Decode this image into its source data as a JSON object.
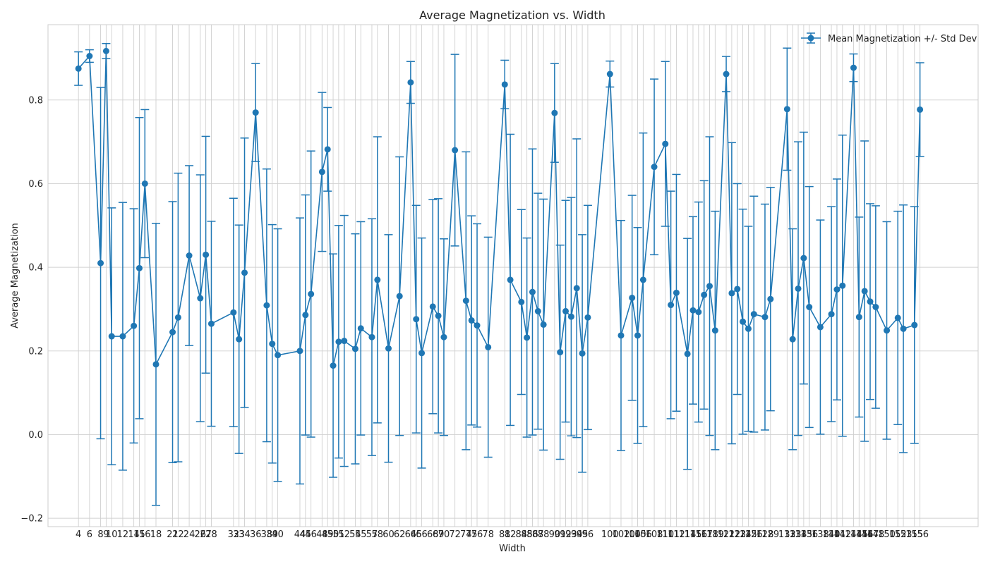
{
  "chart_data": {
    "type": "line",
    "title": "Average Magnetization vs. Width",
    "xlabel": "Width",
    "ylabel": "Average Magnetization",
    "legend": {
      "label": "Mean Magnetization +/- Std Dev",
      "placement": "top-right"
    },
    "grid": true,
    "color": "#1f77b4",
    "xlim": [
      0,
      160
    ],
    "ylim": [
      -0.22,
      0.98
    ],
    "yticks": [
      -0.2,
      0.0,
      0.2,
      0.4,
      0.6,
      0.8
    ],
    "ytick_labels": [
      "−0.2",
      "0.0",
      "0.2",
      "0.4",
      "0.6",
      "0.8"
    ],
    "points": [
      {
        "x": 4,
        "y": 0.875,
        "err": 0.04
      },
      {
        "x": 6,
        "y": 0.905,
        "err": 0.015
      },
      {
        "x": 8,
        "y": 0.41,
        "err": 0.42
      },
      {
        "x": 9,
        "y": 0.917,
        "err": 0.018
      },
      {
        "x": 10,
        "y": 0.235,
        "err": 0.307
      },
      {
        "x": 12,
        "y": 0.235,
        "err": 0.32
      },
      {
        "x": 14,
        "y": 0.26,
        "err": 0.28
      },
      {
        "x": 15,
        "y": 0.398,
        "err": 0.36
      },
      {
        "x": 16,
        "y": 0.6,
        "err": 0.177
      },
      {
        "x": 18,
        "y": 0.168,
        "err": 0.337
      },
      {
        "x": 21,
        "y": 0.245,
        "err": 0.312
      },
      {
        "x": 22,
        "y": 0.28,
        "err": 0.345
      },
      {
        "x": 24,
        "y": 0.428,
        "err": 0.215
      },
      {
        "x": 26,
        "y": 0.326,
        "err": 0.295
      },
      {
        "x": 27,
        "y": 0.43,
        "err": 0.283
      },
      {
        "x": 28,
        "y": 0.265,
        "err": 0.245
      },
      {
        "x": 32,
        "y": 0.292,
        "err": 0.273
      },
      {
        "x": 33,
        "y": 0.228,
        "err": 0.273
      },
      {
        "x": 34,
        "y": 0.387,
        "err": 0.322
      },
      {
        "x": 36,
        "y": 0.77,
        "err": 0.117
      },
      {
        "x": 38,
        "y": 0.309,
        "err": 0.326
      },
      {
        "x": 39,
        "y": 0.217,
        "err": 0.285
      },
      {
        "x": 40,
        "y": 0.19,
        "err": 0.302
      },
      {
        "x": 44,
        "y": 0.2,
        "err": 0.318
      },
      {
        "x": 45,
        "y": 0.286,
        "err": 0.287
      },
      {
        "x": 46,
        "y": 0.336,
        "err": 0.342
      },
      {
        "x": 48,
        "y": 0.628,
        "err": 0.19
      },
      {
        "x": 49,
        "y": 0.682,
        "err": 0.1
      },
      {
        "x": 50,
        "y": 0.165,
        "err": 0.267
      },
      {
        "x": 51,
        "y": 0.222,
        "err": 0.278
      },
      {
        "x": 52,
        "y": 0.224,
        "err": 0.3
      },
      {
        "x": 54,
        "y": 0.205,
        "err": 0.275
      },
      {
        "x": 55,
        "y": 0.254,
        "err": 0.255
      },
      {
        "x": 57,
        "y": 0.233,
        "err": 0.283
      },
      {
        "x": 58,
        "y": 0.37,
        "err": 0.342
      },
      {
        "x": 60,
        "y": 0.206,
        "err": 0.272
      },
      {
        "x": 62,
        "y": 0.331,
        "err": 0.333
      },
      {
        "x": 64,
        "y": 0.842,
        "err": 0.05
      },
      {
        "x": 65,
        "y": 0.276,
        "err": 0.272
      },
      {
        "x": 66,
        "y": 0.195,
        "err": 0.275
      },
      {
        "x": 68,
        "y": 0.306,
        "err": 0.256
      },
      {
        "x": 69,
        "y": 0.284,
        "err": 0.28
      },
      {
        "x": 70,
        "y": 0.233,
        "err": 0.235
      },
      {
        "x": 72,
        "y": 0.68,
        "err": 0.229
      },
      {
        "x": 74,
        "y": 0.32,
        "err": 0.356
      },
      {
        "x": 75,
        "y": 0.273,
        "err": 0.25
      },
      {
        "x": 76,
        "y": 0.261,
        "err": 0.243
      },
      {
        "x": 78,
        "y": 0.209,
        "err": 0.263
      },
      {
        "x": 81,
        "y": 0.837,
        "err": 0.058
      },
      {
        "x": 82,
        "y": 0.37,
        "err": 0.348
      },
      {
        "x": 84,
        "y": 0.317,
        "err": 0.221
      },
      {
        "x": 85,
        "y": 0.232,
        "err": 0.238
      },
      {
        "x": 86,
        "y": 0.341,
        "err": 0.342
      },
      {
        "x": 87,
        "y": 0.295,
        "err": 0.282
      },
      {
        "x": 88,
        "y": 0.263,
        "err": 0.3
      },
      {
        "x": 90,
        "y": 0.769,
        "err": 0.118
      },
      {
        "x": 91,
        "y": 0.197,
        "err": 0.256
      },
      {
        "x": 92,
        "y": 0.295,
        "err": 0.265
      },
      {
        "x": 93,
        "y": 0.282,
        "err": 0.285
      },
      {
        "x": 94,
        "y": 0.35,
        "err": 0.357
      },
      {
        "x": 95,
        "y": 0.194,
        "err": 0.284
      },
      {
        "x": 96,
        "y": 0.28,
        "err": 0.268
      },
      {
        "x": 100,
        "y": 0.862,
        "err": 0.031
      },
      {
        "x": 102,
        "y": 0.237,
        "err": 0.275
      },
      {
        "x": 104,
        "y": 0.327,
        "err": 0.245
      },
      {
        "x": 105,
        "y": 0.237,
        "err": 0.258
      },
      {
        "x": 106,
        "y": 0.37,
        "err": 0.351
      },
      {
        "x": 108,
        "y": 0.64,
        "err": 0.21
      },
      {
        "x": 110,
        "y": 0.695,
        "err": 0.197
      },
      {
        "x": 111,
        "y": 0.31,
        "err": 0.272
      },
      {
        "x": 112,
        "y": 0.339,
        "err": 0.283
      },
      {
        "x": 114,
        "y": 0.193,
        "err": 0.276
      },
      {
        "x": 115,
        "y": 0.297,
        "err": 0.224
      },
      {
        "x": 116,
        "y": 0.293,
        "err": 0.263
      },
      {
        "x": 117,
        "y": 0.334,
        "err": 0.273
      },
      {
        "x": 118,
        "y": 0.355,
        "err": 0.357
      },
      {
        "x": 119,
        "y": 0.249,
        "err": 0.285
      },
      {
        "x": 121,
        "y": 0.862,
        "err": 0.042
      },
      {
        "x": 122,
        "y": 0.338,
        "err": 0.36
      },
      {
        "x": 123,
        "y": 0.348,
        "err": 0.252
      },
      {
        "x": 124,
        "y": 0.27,
        "err": 0.269
      },
      {
        "x": 125,
        "y": 0.253,
        "err": 0.245
      },
      {
        "x": 126,
        "y": 0.288,
        "err": 0.282
      },
      {
        "x": 128,
        "y": 0.281,
        "err": 0.27
      },
      {
        "x": 129,
        "y": 0.324,
        "err": 0.267
      },
      {
        "x": 132,
        "y": 0.778,
        "err": 0.146
      },
      {
        "x": 133,
        "y": 0.228,
        "err": 0.264
      },
      {
        "x": 134,
        "y": 0.349,
        "err": 0.351
      },
      {
        "x": 135,
        "y": 0.422,
        "err": 0.301
      },
      {
        "x": 136,
        "y": 0.305,
        "err": 0.288
      },
      {
        "x": 138,
        "y": 0.257,
        "err": 0.256
      },
      {
        "x": 140,
        "y": 0.288,
        "err": 0.257
      },
      {
        "x": 141,
        "y": 0.347,
        "err": 0.264
      },
      {
        "x": 142,
        "y": 0.356,
        "err": 0.36
      },
      {
        "x": 144,
        "y": 0.877,
        "err": 0.033
      },
      {
        "x": 145,
        "y": 0.281,
        "err": 0.239
      },
      {
        "x": 146,
        "y": 0.343,
        "err": 0.359
      },
      {
        "x": 147,
        "y": 0.318,
        "err": 0.234
      },
      {
        "x": 148,
        "y": 0.305,
        "err": 0.242
      },
      {
        "x": 150,
        "y": 0.249,
        "err": 0.26
      },
      {
        "x": 152,
        "y": 0.279,
        "err": 0.255
      },
      {
        "x": 153,
        "y": 0.253,
        "err": 0.296
      },
      {
        "x": 155,
        "y": 0.262,
        "err": 0.283
      },
      {
        "x": 156,
        "y": 0.777,
        "err": 0.112
      }
    ]
  }
}
